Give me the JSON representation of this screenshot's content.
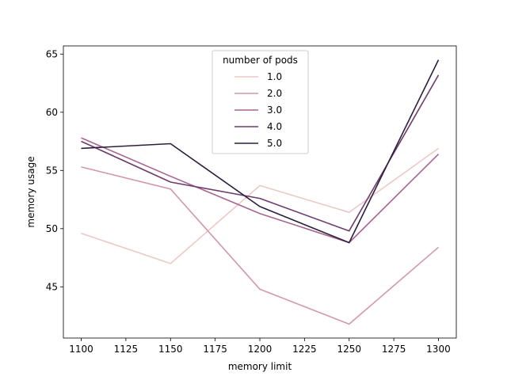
{
  "chart_data": {
    "type": "line",
    "xlabel": "memory limit",
    "ylabel": "memory usage",
    "x": [
      1100,
      1150,
      1200,
      1250,
      1300
    ],
    "xticks": [
      "1100",
      "1125",
      "1150",
      "1175",
      "1200",
      "1225",
      "1250",
      "1275",
      "1300"
    ],
    "yticks": [
      "45",
      "50",
      "55",
      "60",
      "65"
    ],
    "xlim": [
      1090,
      1310
    ],
    "ylim": [
      40.6,
      65.7
    ],
    "legend": {
      "title": "number of pods",
      "placement": "upper center"
    },
    "grid": false,
    "series": [
      {
        "name": "1.0",
        "color": "#ebc9c6",
        "values": [
          49.6,
          47.0,
          53.7,
          51.4,
          56.9
        ]
      },
      {
        "name": "2.0",
        "color": "#d497ad",
        "values": [
          55.3,
          53.4,
          44.8,
          41.8,
          48.4
        ]
      },
      {
        "name": "3.0",
        "color": "#a9648f",
        "values": [
          57.8,
          54.5,
          51.3,
          48.8,
          56.4
        ]
      },
      {
        "name": "4.0",
        "color": "#6e3b6d",
        "values": [
          57.5,
          54.0,
          52.6,
          49.8,
          63.2
        ]
      },
      {
        "name": "5.0",
        "color": "#2e1e3e",
        "values": [
          56.9,
          57.3,
          51.9,
          48.8,
          64.5
        ]
      }
    ]
  }
}
